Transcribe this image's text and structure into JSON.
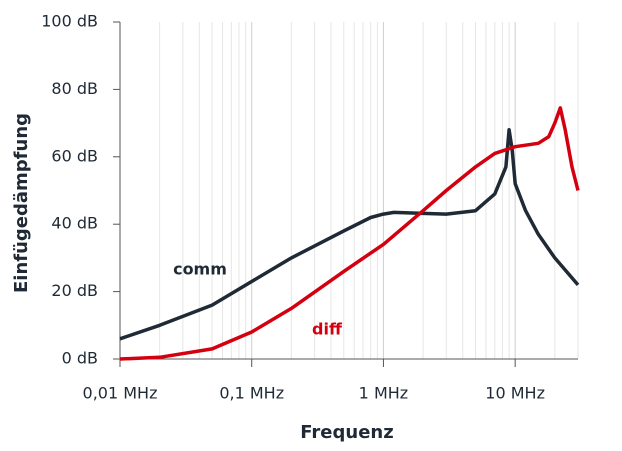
{
  "chart_data": {
    "type": "line",
    "xlabel": "Frequenz",
    "ylabel": "Einfügedämpfung",
    "log_x": true,
    "xlim": [
      0.01,
      30
    ],
    "ylim": [
      0,
      100
    ],
    "xticks": [
      {
        "value": 0.01,
        "label": "0,01 MHz"
      },
      {
        "value": 0.1,
        "label": "0,1 MHz"
      },
      {
        "value": 1,
        "label": "1 MHz"
      },
      {
        "value": 10,
        "label": "10 MHz"
      }
    ],
    "x_minor_grid": [
      0.02,
      0.03,
      0.04,
      0.05,
      0.06,
      0.07,
      0.08,
      0.09,
      0.2,
      0.3,
      0.4,
      0.5,
      0.6,
      0.7,
      0.8,
      0.9,
      2,
      3,
      4,
      5,
      6,
      7,
      8,
      9,
      20,
      30
    ],
    "yticks": [
      {
        "value": 0,
        "label": "0 dB"
      },
      {
        "value": 20,
        "label": "20 dB"
      },
      {
        "value": 40,
        "label": "40 dB"
      },
      {
        "value": 60,
        "label": "60 dB"
      },
      {
        "value": 80,
        "label": "80 dB"
      },
      {
        "value": 100,
        "label": "100 dB"
      }
    ],
    "grid": true,
    "series": [
      {
        "name": "comm",
        "color": "#1f2a36",
        "x": [
          0.01,
          0.02,
          0.05,
          0.1,
          0.2,
          0.5,
          0.8,
          1,
          1.2,
          2,
          3,
          5,
          7,
          8.5,
          9,
          9.5,
          10,
          12,
          15,
          20,
          30
        ],
        "values": [
          6,
          10,
          16,
          23,
          30,
          38,
          42,
          43,
          43.5,
          43.2,
          43,
          44,
          49,
          57,
          68,
          62,
          52,
          44,
          37,
          30,
          22
        ]
      },
      {
        "name": "diff",
        "color": "#d40010",
        "x": [
          0.01,
          0.02,
          0.05,
          0.1,
          0.2,
          0.5,
          1,
          2,
          3,
          5,
          7,
          10,
          15,
          18,
          20,
          22,
          24,
          27,
          30
        ],
        "values": [
          0,
          0.5,
          3,
          8,
          15,
          26,
          34,
          44,
          50,
          57,
          61,
          63,
          64,
          66,
          70,
          74.5,
          68,
          57,
          50
        ]
      }
    ]
  }
}
